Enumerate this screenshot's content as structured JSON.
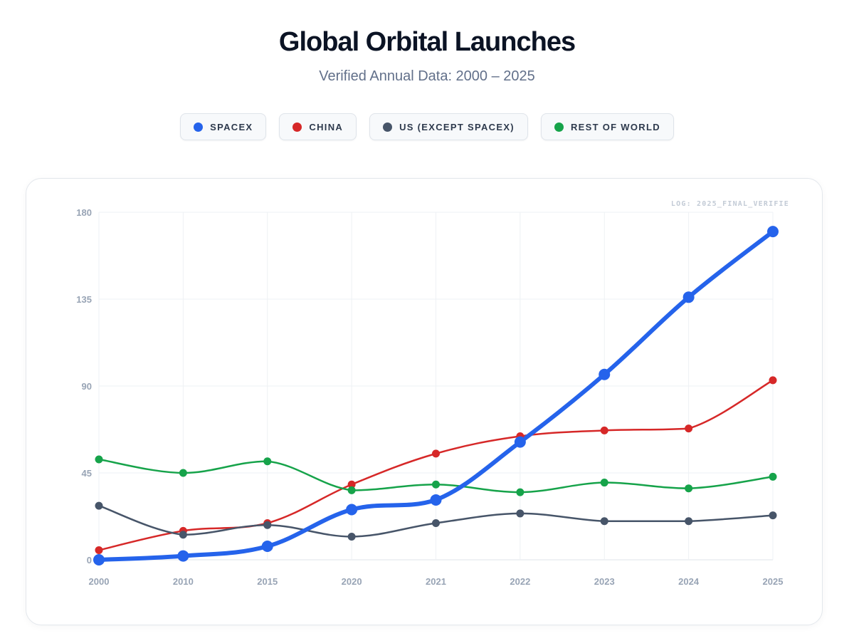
{
  "header": {
    "title": "Global Orbital Launches",
    "subtitle": "Verified Annual Data: 2000 – 2025"
  },
  "legend": [
    {
      "label": "SPACEX",
      "color": "#2563eb"
    },
    {
      "label": "CHINA",
      "color": "#d62828"
    },
    {
      "label": "US (EXCEPT SPACEX)",
      "color": "#475569"
    },
    {
      "label": "REST OF WORLD",
      "color": "#16a34a"
    }
  ],
  "chart": {
    "log_label": "LOG: 2025_FINAL_VERIFIE"
  },
  "chart_data": {
    "type": "line",
    "title": "Global Orbital Launches",
    "subtitle": "Verified Annual Data: 2000 – 2025",
    "xlabel": "",
    "ylabel": "",
    "categories": [
      "2000",
      "2010",
      "2015",
      "2020",
      "2021",
      "2022",
      "2023",
      "2024",
      "2025"
    ],
    "ylim": [
      0,
      180
    ],
    "yticks": [
      0,
      45,
      90,
      135,
      180
    ],
    "grid": true,
    "series": [
      {
        "name": "SPACEX",
        "color": "#2563eb",
        "emphasis": true,
        "values": [
          0,
          2,
          7,
          26,
          31,
          61,
          96,
          136,
          170
        ]
      },
      {
        "name": "CHINA",
        "color": "#d62828",
        "emphasis": false,
        "values": [
          5,
          15,
          19,
          39,
          55,
          64,
          67,
          68,
          93
        ]
      },
      {
        "name": "US (EXCEPT SPACEX)",
        "color": "#475569",
        "emphasis": false,
        "values": [
          28,
          13,
          18,
          12,
          19,
          24,
          20,
          20,
          23
        ]
      },
      {
        "name": "REST OF WORLD",
        "color": "#16a34a",
        "emphasis": false,
        "values": [
          52,
          45,
          51,
          36,
          39,
          35,
          40,
          37,
          43
        ]
      }
    ]
  }
}
